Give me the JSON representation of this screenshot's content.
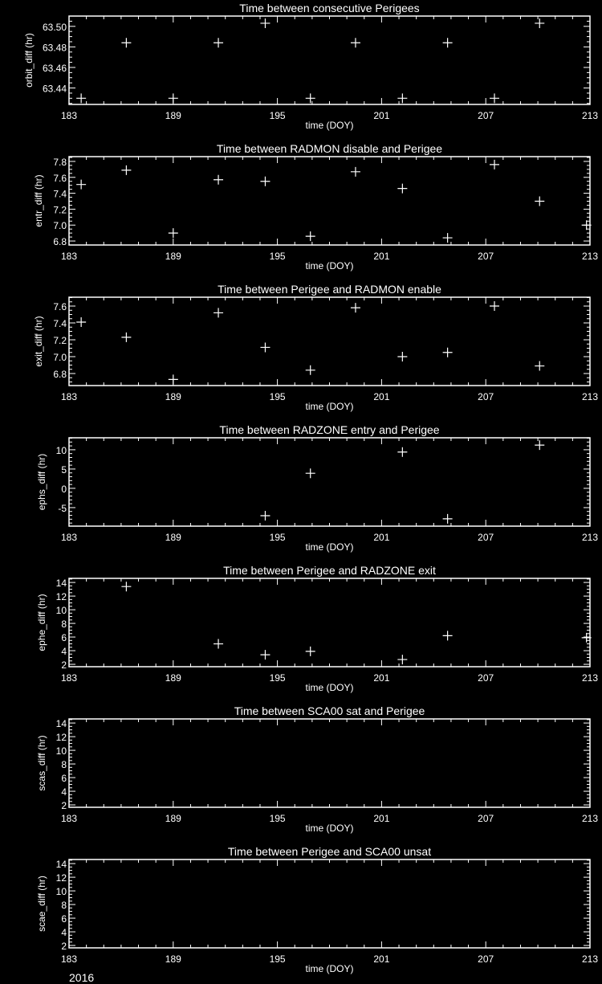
{
  "chart_data": [
    {
      "type": "scatter",
      "title": "Time between consecutive Perigees",
      "xlabel": "time (DOY)",
      "ylabel": "orbit_diff (hr)",
      "xlim": [
        183,
        213
      ],
      "xticks": [
        183,
        189,
        195,
        201,
        207,
        213
      ],
      "ylim": [
        63.424,
        63.51
      ],
      "yticks": [
        63.44,
        63.46,
        63.48,
        63.5
      ],
      "ytick_labels": [
        "63.44",
        "63.46",
        "63.48",
        "63.50"
      ],
      "yminor": 0.005,
      "x": [
        183.7,
        186.3,
        189.0,
        191.6,
        194.3,
        196.9,
        199.5,
        202.2,
        204.8,
        207.5,
        210.1
      ],
      "y": [
        63.43,
        63.484,
        63.43,
        63.484,
        63.503,
        63.43,
        63.484,
        63.43,
        63.484,
        63.43,
        63.503
      ]
    },
    {
      "type": "scatter",
      "title": "Time between RADMON disable and Perigee",
      "xlabel": "time (DOY)",
      "ylabel": "entr_diff (hr)",
      "xlim": [
        183,
        213
      ],
      "xticks": [
        183,
        189,
        195,
        201,
        207,
        213
      ],
      "ylim": [
        6.75,
        7.86
      ],
      "yticks": [
        6.8,
        7.0,
        7.2,
        7.4,
        7.6,
        7.8
      ],
      "ytick_labels": [
        "6.8",
        "7.0",
        "7.2",
        "7.4",
        "7.6",
        "7.8"
      ],
      "yminor": 0.05,
      "x": [
        183.7,
        186.3,
        189.0,
        191.6,
        194.3,
        196.9,
        199.5,
        202.2,
        204.8,
        207.5,
        210.1,
        212.8
      ],
      "y": [
        7.51,
        7.69,
        6.9,
        7.57,
        7.55,
        6.86,
        7.67,
        7.46,
        6.84,
        7.76,
        7.3,
        7.0
      ]
    },
    {
      "type": "scatter",
      "title": "Time between Perigee and RADMON enable",
      "xlabel": "time (DOY)",
      "ylabel": "exit_diff (hr)",
      "xlim": [
        183,
        213
      ],
      "xticks": [
        183,
        189,
        195,
        201,
        207,
        213
      ],
      "ylim": [
        6.657,
        7.705
      ],
      "yticks": [
        6.8,
        7.0,
        7.2,
        7.4,
        7.6
      ],
      "ytick_labels": [
        "6.8",
        "7.0",
        "7.2",
        "7.4",
        "7.6"
      ],
      "yminor": 0.05,
      "x": [
        183.7,
        186.3,
        189.0,
        191.6,
        194.3,
        196.9,
        199.5,
        202.2,
        204.8,
        207.5,
        210.1
      ],
      "y": [
        7.41,
        7.23,
        6.73,
        7.52,
        7.11,
        6.84,
        7.58,
        7.0,
        7.05,
        7.6,
        6.89
      ]
    },
    {
      "type": "scatter",
      "title": "Time between RADZONE entry and Perigee",
      "xlabel": "time (DOY)",
      "ylabel": "ephs_diff (hr)",
      "xlim": [
        183,
        213
      ],
      "xticks": [
        183,
        189,
        195,
        201,
        207,
        213
      ],
      "ylim": [
        -9.8,
        13.1
      ],
      "yticks": [
        -5,
        0,
        5,
        10
      ],
      "ytick_labels": [
        "-5",
        "0",
        "5",
        "10"
      ],
      "yminor": 1,
      "x": [
        194.3,
        196.9,
        202.2,
        204.8,
        210.1
      ],
      "y": [
        -7.1,
        3.9,
        9.4,
        -7.9,
        11.2
      ]
    },
    {
      "type": "scatter",
      "title": "Time between Perigee and RADZONE exit",
      "xlabel": "time (DOY)",
      "ylabel": "ephe_diff (hr)",
      "xlim": [
        183,
        213
      ],
      "xticks": [
        183,
        189,
        195,
        201,
        207,
        213
      ],
      "ylim": [
        1.65,
        14.6
      ],
      "yticks": [
        2,
        4,
        6,
        8,
        10,
        12,
        14
      ],
      "ytick_labels": [
        "2",
        "4",
        "6",
        "8",
        "10",
        "12",
        "14"
      ],
      "yminor": 0.5,
      "x": [
        186.3,
        191.6,
        194.3,
        196.9,
        202.2,
        204.8,
        212.8
      ],
      "y": [
        13.4,
        5.0,
        3.4,
        3.9,
        2.7,
        6.2,
        5.9
      ]
    },
    {
      "type": "scatter",
      "title": "Time between SCA00 sat and Perigee",
      "xlabel": "time (DOY)",
      "ylabel": "scas_diff (hr)",
      "xlim": [
        183,
        213
      ],
      "xticks": [
        183,
        189,
        195,
        201,
        207,
        213
      ],
      "ylim": [
        1.65,
        14.6
      ],
      "yticks": [
        2,
        4,
        6,
        8,
        10,
        12,
        14
      ],
      "ytick_labels": [
        "2",
        "4",
        "6",
        "8",
        "10",
        "12",
        "14"
      ],
      "yminor": 0.5,
      "x": [],
      "y": []
    },
    {
      "type": "scatter",
      "title": "Time between Perigee and SCA00 unsat",
      "xlabel": "time (DOY)",
      "ylabel": "scae_diff (hr)",
      "xlim": [
        183,
        213
      ],
      "xticks": [
        183,
        189,
        195,
        201,
        207,
        213
      ],
      "ylim": [
        1.65,
        14.6
      ],
      "yticks": [
        2,
        4,
        6,
        8,
        10,
        12,
        14
      ],
      "ytick_labels": [
        "2",
        "4",
        "6",
        "8",
        "10",
        "12",
        "14"
      ],
      "yminor": 0.5,
      "x": [],
      "y": []
    }
  ],
  "footer": {
    "year": "2016"
  },
  "colors": {
    "background": "#000000",
    "foreground": "#ffffff"
  }
}
